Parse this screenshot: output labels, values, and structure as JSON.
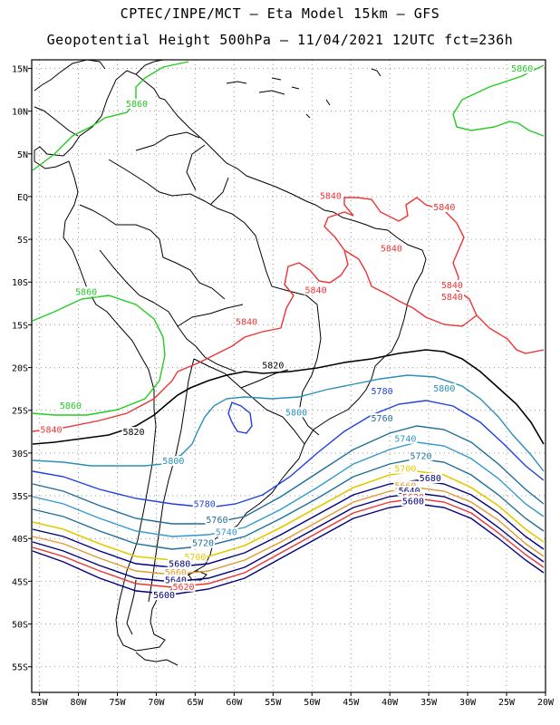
{
  "header": {
    "line1": "CPTEC/INPE/MCT –  Eta Model 15km – GFS",
    "line2": "Geopotential Height 500hPa – 11/04/2021 12UTC fct=236h"
  },
  "map": {
    "lon_range": [
      -86,
      -20
    ],
    "lat_range": [
      -58,
      16
    ],
    "x_ticks": [
      {
        "value": -85,
        "label": "85W"
      },
      {
        "value": -80,
        "label": "80W"
      },
      {
        "value": -75,
        "label": "75W"
      },
      {
        "value": -70,
        "label": "70W"
      },
      {
        "value": -65,
        "label": "65W"
      },
      {
        "value": -60,
        "label": "60W"
      },
      {
        "value": -55,
        "label": "55W"
      },
      {
        "value": -50,
        "label": "50W"
      },
      {
        "value": -45,
        "label": "45W"
      },
      {
        "value": -40,
        "label": "40W"
      },
      {
        "value": -35,
        "label": "35W"
      },
      {
        "value": -30,
        "label": "30W"
      },
      {
        "value": -25,
        "label": "25W"
      },
      {
        "value": -20,
        "label": "20W"
      }
    ],
    "y_ticks": [
      {
        "value": 15,
        "label": "15N"
      },
      {
        "value": 10,
        "label": "10N"
      },
      {
        "value": 5,
        "label": "5N"
      },
      {
        "value": 0,
        "label": "EQ"
      },
      {
        "value": -5,
        "label": "5S"
      },
      {
        "value": -10,
        "label": "10S"
      },
      {
        "value": -15,
        "label": "15S"
      },
      {
        "value": -20,
        "label": "20S"
      },
      {
        "value": -25,
        "label": "25S"
      },
      {
        "value": -30,
        "label": "30S"
      },
      {
        "value": -35,
        "label": "35S"
      },
      {
        "value": -40,
        "label": "40S"
      },
      {
        "value": -45,
        "label": "45S"
      },
      {
        "value": -50,
        "label": "50S"
      },
      {
        "value": -55,
        "label": "55S"
      }
    ],
    "contour_labels": [
      {
        "text": "5860",
        "lon": -72.5,
        "lat": 10.5,
        "color": "#22cc22"
      },
      {
        "text": "5860",
        "lon": -23.0,
        "lat": 14.6,
        "color": "#22cc22"
      },
      {
        "text": "5860",
        "lon": -79.0,
        "lat": -11.5,
        "color": "#22cc22"
      },
      {
        "text": "5860",
        "lon": -81.0,
        "lat": -24.8,
        "color": "#22cc22"
      },
      {
        "text": "5840",
        "lon": -83.5,
        "lat": -27.6,
        "color": "#ee3333"
      },
      {
        "text": "5840",
        "lon": -47.6,
        "lat": -0.3,
        "color": "#ee3333"
      },
      {
        "text": "5840",
        "lon": -33.0,
        "lat": -1.6,
        "color": "#ee3333"
      },
      {
        "text": "5840",
        "lon": -39.8,
        "lat": -6.4,
        "color": "#ee3333"
      },
      {
        "text": "5840",
        "lon": -49.5,
        "lat": -11.3,
        "color": "#ee3333"
      },
      {
        "text": "5840",
        "lon": -32.0,
        "lat": -10.7,
        "color": "#ee3333"
      },
      {
        "text": "5840",
        "lon": -32.0,
        "lat": -12.1,
        "color": "#ee3333"
      },
      {
        "text": "5840",
        "lon": -58.4,
        "lat": -15.0,
        "color": "#ee3333"
      },
      {
        "text": "5820",
        "lon": -55.0,
        "lat": -20.1,
        "color": "#000000"
      },
      {
        "text": "5820",
        "lon": -72.9,
        "lat": -27.9,
        "color": "#000000"
      },
      {
        "text": "5800",
        "lon": -33.0,
        "lat": -22.8,
        "color": "#2a8fb8"
      },
      {
        "text": "5800",
        "lon": -52.0,
        "lat": -25.6,
        "color": "#2a8fb8"
      },
      {
        "text": "5800",
        "lon": -67.8,
        "lat": -31.3,
        "color": "#2a8fb8"
      },
      {
        "text": "5780",
        "lon": -41.0,
        "lat": -23.1,
        "color": "#1f3fe0"
      },
      {
        "text": "5780",
        "lon": -63.8,
        "lat": -36.3,
        "color": "#1f3fe0"
      },
      {
        "text": "5760",
        "lon": -41.0,
        "lat": -26.3,
        "color": "#1f6f9a"
      },
      {
        "text": "5760",
        "lon": -62.2,
        "lat": -38.2,
        "color": "#1f6f9a"
      },
      {
        "text": "5740",
        "lon": -38.0,
        "lat": -28.7,
        "color": "#3399cc"
      },
      {
        "text": "5740",
        "lon": -61.0,
        "lat": -39.6,
        "color": "#3399cc"
      },
      {
        "text": "5720",
        "lon": -36.0,
        "lat": -30.7,
        "color": "#1f6f9a"
      },
      {
        "text": "5720",
        "lon": -64.0,
        "lat": -40.9,
        "color": "#1f6f9a"
      },
      {
        "text": "5700",
        "lon": -38.0,
        "lat": -32.2,
        "color": "#e6c800"
      },
      {
        "text": "5700",
        "lon": -65.0,
        "lat": -42.5,
        "color": "#e6c800"
      },
      {
        "text": "5680",
        "lon": -34.8,
        "lat": -33.3,
        "color": "#000080"
      },
      {
        "text": "5680",
        "lon": -67.0,
        "lat": -43.3,
        "color": "#000080"
      },
      {
        "text": "5660",
        "lon": -38.0,
        "lat": -34.2,
        "color": "#e09a30"
      },
      {
        "text": "5660",
        "lon": -67.5,
        "lat": -44.3,
        "color": "#e09a30"
      },
      {
        "text": "5640",
        "lon": -37.5,
        "lat": -34.8,
        "color": "#000080"
      },
      {
        "text": "5640",
        "lon": -67.5,
        "lat": -45.2,
        "color": "#000080"
      },
      {
        "text": "5620",
        "lon": -37.0,
        "lat": -35.5,
        "color": "#ee3333"
      },
      {
        "text": "5620",
        "lon": -66.5,
        "lat": -46.0,
        "color": "#ee3333"
      },
      {
        "text": "5600",
        "lon": -37.0,
        "lat": -36.0,
        "color": "#000080"
      },
      {
        "text": "5600",
        "lon": -69.0,
        "lat": -47.0,
        "color": "#000080"
      }
    ]
  }
}
